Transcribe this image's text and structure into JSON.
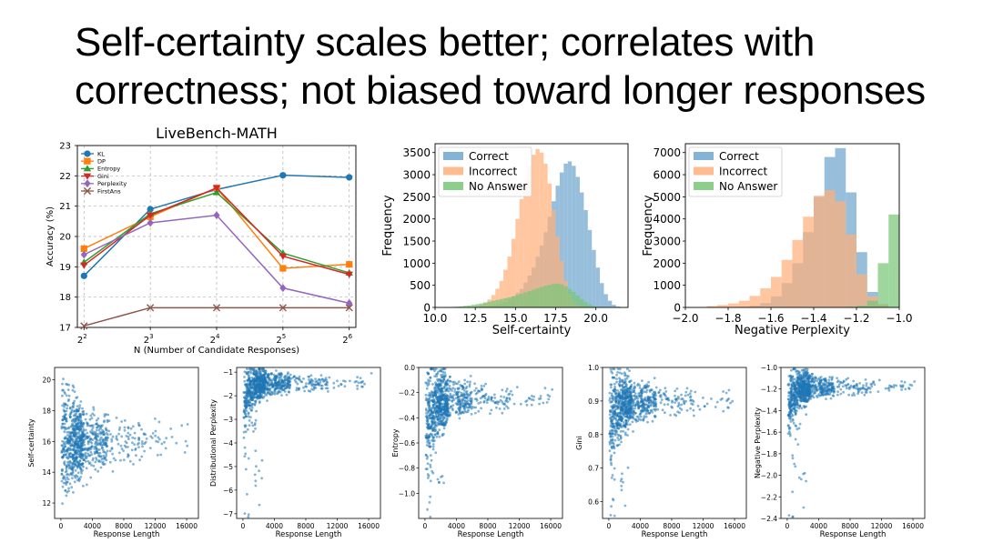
{
  "slide": {
    "title_line1": "Self-certainty scales better; correlates with",
    "title_line2": "correctness; not biased toward longer responses"
  },
  "colors": {
    "kl": "#1f77b4",
    "dp": "#ff7f0e",
    "entropy": "#2ca02c",
    "gini": "#d62728",
    "perplexity": "#9467bd",
    "firstans": "#8c564b",
    "correct": "#6fa6cf",
    "incorrect": "#ffb07c",
    "noanswer": "#78c678",
    "scatter": "#1f77b4"
  },
  "chart_data": [
    {
      "id": "line",
      "type": "line",
      "title": "LiveBench-MATH",
      "xlabel": "N (Number of Candidate Responses)",
      "ylabel": "Accuracy (%)",
      "x": [
        2,
        3,
        4,
        5,
        6
      ],
      "xtick_labels": [
        "2",
        "3",
        "4",
        "5",
        "6"
      ],
      "xtick_base": "2",
      "ylim": [
        17,
        23
      ],
      "yticks": [
        17,
        18,
        19,
        20,
        21,
        22,
        23
      ],
      "grid": true,
      "legend_position": "top-left",
      "series": [
        {
          "name": "KL",
          "marker": "circle",
          "color": "#1f77b4",
          "values": [
            18.7,
            20.9,
            21.55,
            22.02,
            21.95
          ]
        },
        {
          "name": "DP",
          "marker": "square",
          "color": "#ff7f0e",
          "values": [
            19.6,
            20.65,
            21.6,
            18.95,
            19.08
          ]
        },
        {
          "name": "Entropy",
          "marker": "triangle-up",
          "color": "#2ca02c",
          "values": [
            19.15,
            20.75,
            21.45,
            19.45,
            18.8
          ]
        },
        {
          "name": "Gini",
          "marker": "triangle-down",
          "color": "#d62728",
          "values": [
            19.05,
            20.7,
            21.6,
            19.35,
            18.75
          ]
        },
        {
          "name": "Perplexity",
          "marker": "diamond",
          "color": "#9467bd",
          "values": [
            19.4,
            20.45,
            20.7,
            18.3,
            17.8
          ]
        },
        {
          "name": "FirstAns",
          "marker": "x",
          "color": "#8c564b",
          "values": [
            17.05,
            17.65,
            17.65,
            17.65,
            17.65
          ]
        }
      ]
    },
    {
      "id": "hist_sc",
      "type": "histogram",
      "xlabel": "Self-certainty",
      "ylabel": "Frequency",
      "xlim": [
        10,
        22
      ],
      "ylim": [
        0,
        3700
      ],
      "xticks": [
        10,
        12.5,
        15,
        17.5,
        20
      ],
      "xtick_labels": [
        "10.0",
        "12.5",
        "15.0",
        "17.5",
        "20.0"
      ],
      "yticks": [
        0,
        500,
        1000,
        1500,
        2000,
        2500,
        3000,
        3500
      ],
      "legend_position": "top-left",
      "series": [
        {
          "name": "Correct",
          "color": "#6fa6cf",
          "bin_start": 12.5,
          "bin_width": 0.25,
          "values": [
            10,
            15,
            20,
            30,
            45,
            60,
            90,
            130,
            180,
            250,
            330,
            420,
            560,
            720,
            900,
            1150,
            1400,
            1700,
            2050,
            2400,
            2750,
            3050,
            3250,
            3300,
            3200,
            2950,
            2600,
            2200,
            1750,
            1300,
            900,
            550,
            300,
            150,
            60,
            20
          ]
        },
        {
          "name": "Incorrect",
          "color": "#ffb07c",
          "bin_start": 12.5,
          "bin_width": 0.25,
          "values": [
            30,
            60,
            110,
            180,
            280,
            420,
            600,
            850,
            1150,
            1550,
            2000,
            2450,
            2850,
            3200,
            3450,
            3580,
            3500,
            3250,
            2800,
            2200,
            1600,
            1050,
            600,
            300,
            130,
            50,
            15
          ]
        },
        {
          "name": "No Answer",
          "color": "#78c678",
          "bin_start": 10.5,
          "bin_width": 0.25,
          "values": [
            5,
            8,
            12,
            18,
            25,
            35,
            45,
            60,
            75,
            90,
            110,
            130,
            150,
            170,
            190,
            210,
            230,
            255,
            280,
            310,
            340,
            370,
            400,
            430,
            460,
            490,
            510,
            530,
            540,
            520,
            480,
            420,
            350,
            270,
            190,
            120,
            70,
            35,
            15
          ]
        }
      ]
    },
    {
      "id": "hist_np",
      "type": "histogram",
      "xlabel": "Negative Perplexity",
      "ylabel": "Frequency",
      "xlim": [
        -2.0,
        -1.0
      ],
      "ylim": [
        0,
        7400
      ],
      "xticks": [
        -2.0,
        -1.8,
        -1.6,
        -1.4,
        -1.2,
        -1.0
      ],
      "xtick_labels": [
        "−2.0",
        "−1.8",
        "−1.6",
        "−1.4",
        "−1.2",
        "−1.0"
      ],
      "yticks": [
        0,
        1000,
        2000,
        3000,
        4000,
        5000,
        6000,
        7000
      ],
      "legend_position": "top-left",
      "series": [
        {
          "name": "Correct",
          "color": "#6fa6cf",
          "bin_start": -1.8,
          "bin_width": 0.05,
          "values": [
            10,
            30,
            80,
            200,
            500,
            1100,
            2000,
            3400,
            5000,
            6800,
            7200,
            5200,
            2500,
            700,
            100
          ]
        },
        {
          "name": "Incorrect",
          "color": "#ffb07c",
          "bin_start": -1.9,
          "bin_width": 0.05,
          "values": [
            60,
            110,
            180,
            300,
            520,
            860,
            1380,
            2150,
            3050,
            4100,
            5050,
            5300,
            4800,
            3300,
            1500,
            500,
            150
          ]
        },
        {
          "name": "No Answer",
          "color": "#78c678",
          "bin_start": -1.25,
          "bin_width": 0.05,
          "values": [
            30,
            80,
            300,
            2000,
            4200
          ]
        }
      ]
    },
    {
      "id": "sc1",
      "type": "scatter",
      "xlabel": "Response Length",
      "ylabel": "Self-certainty",
      "xlim": [
        -800,
        17500
      ],
      "ylim": [
        11,
        20.8
      ],
      "xticks": [
        0,
        4000,
        8000,
        12000,
        16000
      ],
      "xtick_labels": [
        "0",
        "4000",
        "8000",
        "12000",
        "16000"
      ],
      "yticks": [
        12,
        14,
        16,
        18,
        20
      ],
      "ytick_labels": [
        "12",
        "14",
        "16",
        "18",
        "20"
      ],
      "model": "flat",
      "params": {
        "center": 16.0,
        "spread": 3.5,
        "tail": 3.0
      }
    },
    {
      "id": "sc2",
      "type": "scatter",
      "xlabel": "Response Length",
      "ylabel": "Distributional Perplexity",
      "xlim": [
        -800,
        17500
      ],
      "ylim": [
        -7.2,
        -0.8
      ],
      "xticks": [
        0,
        4000,
        8000,
        12000,
        16000
      ],
      "xtick_labels": [
        "0",
        "4000",
        "8000",
        "12000",
        "16000"
      ],
      "yticks": [
        -7,
        -6,
        -5,
        -4,
        -3,
        -2,
        -1
      ],
      "ytick_labels": [
        "−7",
        "−6",
        "−5",
        "−4",
        "−3",
        "−2",
        "−1"
      ],
      "model": "sat",
      "params": {
        "plateau": -1.45,
        "depth": -1.2,
        "decay": 700,
        "noise": 0.38,
        "low": -7.0
      }
    },
    {
      "id": "sc3",
      "type": "scatter",
      "xlabel": "Response Length",
      "ylabel": "Entropy",
      "xlim": [
        -800,
        17500
      ],
      "ylim": [
        -1.2,
        0.0
      ],
      "xticks": [
        0,
        4000,
        8000,
        12000,
        16000
      ],
      "xtick_labels": [
        "0",
        "4000",
        "8000",
        "12000",
        "16000"
      ],
      "yticks": [
        -1.0,
        -0.8,
        -0.6,
        -0.4,
        -0.2,
        0.0
      ],
      "ytick_labels": [
        "−1.0",
        "−0.8",
        "−0.6",
        "−0.4",
        "−0.2",
        "0.0"
      ],
      "model": "sat",
      "params": {
        "plateau": -0.25,
        "depth": -0.25,
        "decay": 900,
        "noise": 0.12,
        "low": -1.15
      }
    },
    {
      "id": "sc4",
      "type": "scatter",
      "xlabel": "Response Length",
      "ylabel": "Gini",
      "xlim": [
        -800,
        17500
      ],
      "ylim": [
        0.55,
        1.0
      ],
      "xticks": [
        0,
        4000,
        8000,
        12000,
        16000
      ],
      "xtick_labels": [
        "0",
        "4000",
        "8000",
        "12000",
        "16000"
      ],
      "yticks": [
        0.6,
        0.7,
        0.8,
        0.9,
        1.0
      ],
      "ytick_labels": [
        "0.6",
        "0.7",
        "0.8",
        "0.9",
        "1.0"
      ],
      "model": "sat",
      "params": {
        "plateau": 0.9,
        "depth": -0.08,
        "decay": 900,
        "noise": 0.045,
        "low": 0.57
      }
    },
    {
      "id": "sc5",
      "type": "scatter",
      "xlabel": "Response Length",
      "ylabel": "Negative Perplexity",
      "xlim": [
        -800,
        17500
      ],
      "ylim": [
        -2.4,
        -1.0
      ],
      "xticks": [
        0,
        4000,
        8000,
        12000,
        16000
      ],
      "xtick_labels": [
        "0",
        "4000",
        "8000",
        "12000",
        "16000"
      ],
      "yticks": [
        -2.4,
        -2.2,
        -2.0,
        -1.8,
        -1.6,
        -1.4,
        -1.2,
        -1.0
      ],
      "ytick_labels": [
        "−2.4",
        "−2.2",
        "−2.0",
        "−1.8",
        "−1.6",
        "−1.4",
        "−1.2",
        "−1.0"
      ],
      "model": "sat",
      "params": {
        "plateau": -1.18,
        "depth": -0.25,
        "decay": 700,
        "noise": 0.08,
        "low": -2.38
      }
    }
  ]
}
